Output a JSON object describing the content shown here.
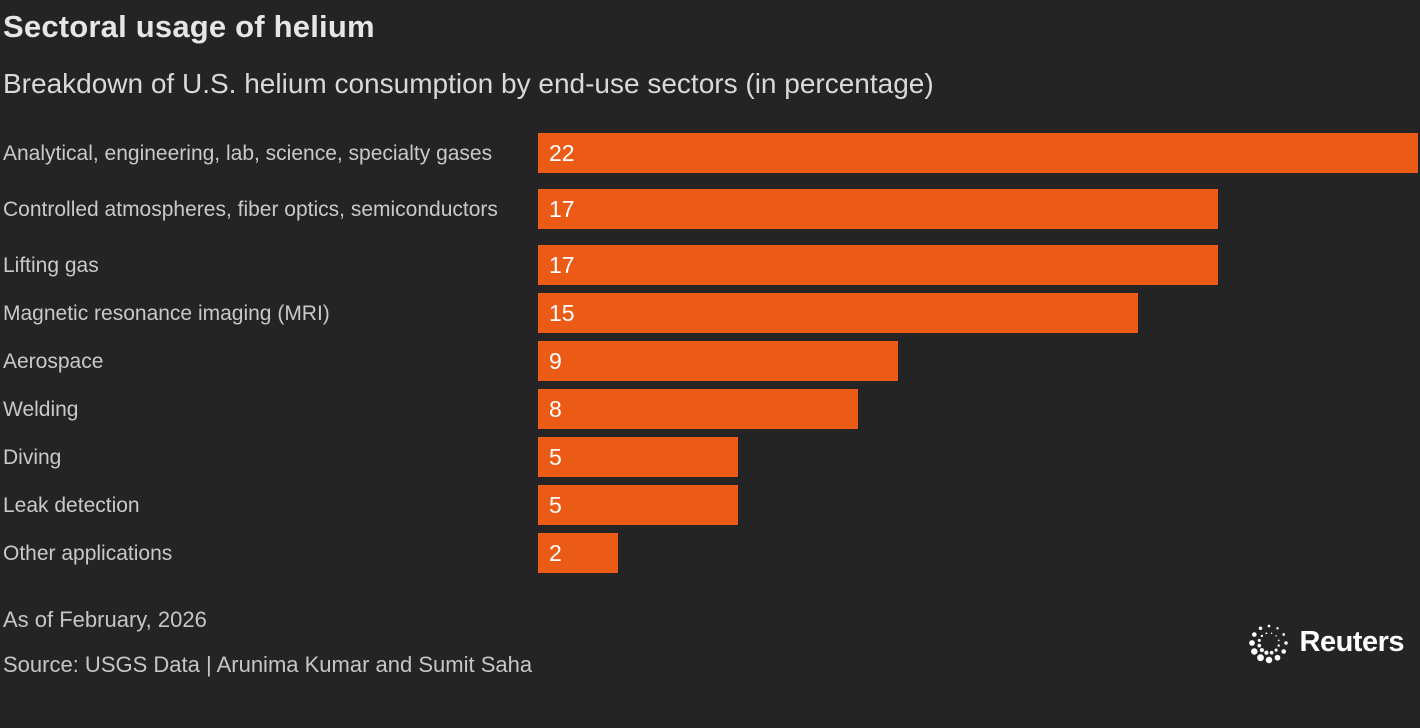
{
  "header": {
    "title": "Sectoral usage of helium",
    "subtitle": "Breakdown of U.S. helium consumption by end-use sectors (in percentage)"
  },
  "chart_data": {
    "type": "bar",
    "orientation": "horizontal",
    "title": "Sectoral usage of helium",
    "subtitle": "Breakdown of U.S. helium consumption by end-use sectors (in percentage)",
    "categories": [
      "Analytical, engineering, lab, science, specialty gases",
      "Controlled atmospheres, fiber optics, semiconductors",
      "Lifting gas",
      "Magnetic resonance imaging (MRI)",
      "Aerospace",
      "Welding",
      "Diving",
      "Leak detection",
      "Other applications"
    ],
    "values": [
      22,
      17,
      17,
      15,
      9,
      8,
      5,
      5,
      2
    ],
    "xlabel": "",
    "ylabel": "",
    "xlim": [
      0,
      22
    ],
    "grid": false,
    "legend": false,
    "value_label_position": "inside-left",
    "bar_color": "#ec5b16",
    "value_label_color": "#ffffff"
  },
  "footer": {
    "note": "As of February, 2026",
    "source": "Source: USGS Data | Arunima Kumar and Sumit Saha",
    "logo_text": "Reuters",
    "logo_icon": "reuters-dotted-circle-icon"
  },
  "colors": {
    "background": "#242424",
    "bar": "#ec5b16",
    "title_text": "#e6e6e6",
    "subtitle_text": "#d9d9d9",
    "label_text": "#c9c9c9",
    "footer_text": "#c6c6c6",
    "value_text": "#ffffff"
  }
}
